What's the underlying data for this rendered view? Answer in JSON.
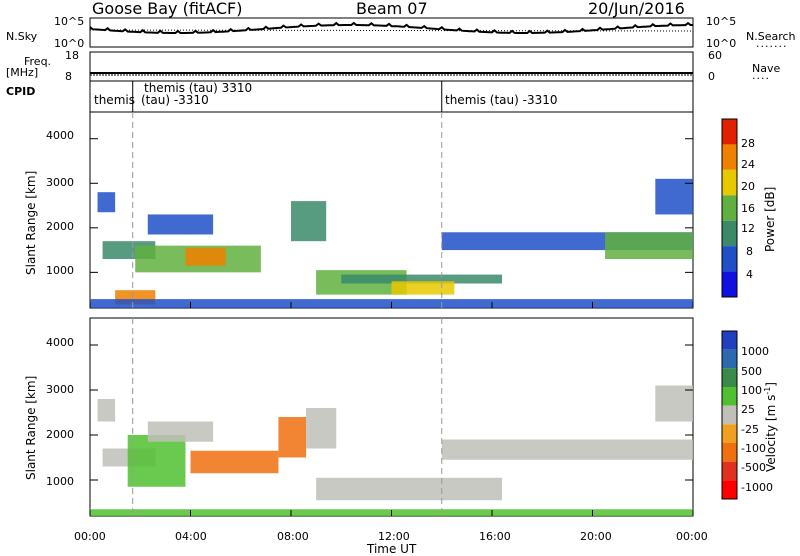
{
  "header": {
    "station": "Goose Bay (fitACF)",
    "beam": "Beam 07",
    "date": "20/Jun/2016"
  },
  "top_panels": {
    "nsky_label": "N.Sky",
    "nsky_ticks": [
      "10^5",
      "10^0"
    ],
    "nsearch_label": "N.Search",
    "nsearch_ticks": [
      "10^5",
      "10^0"
    ],
    "freq_label_line1": "Freq.",
    "freq_label_line2": "[MHz]",
    "freq_ticks": [
      "18",
      "8"
    ],
    "nave_label": "Nave",
    "nave_ticks": [
      "60",
      "0"
    ],
    "cpid_label": "CPID",
    "cpid_entries": [
      {
        "text": "themis",
        "time_hours": 0.0
      },
      {
        "text": "themis (tau) 3310",
        "time_hours": 1.7
      },
      {
        "text": "(tau) -3310",
        "time_hours": 1.7
      },
      {
        "text": "themis (tau) -3310",
        "time_hours": 14.0
      }
    ]
  },
  "chart_data": [
    {
      "type": "heatmap",
      "panel": "power",
      "ylabel": "Slant Range [km]",
      "xlabel": "",
      "yticks": [
        "1000",
        "2000",
        "3000",
        "4000"
      ],
      "ylim": [
        200,
        4600
      ],
      "xlim_hours": [
        0,
        24
      ],
      "colorbar_label": "Power [dB]",
      "colorbar_ticks": [
        "4",
        "8",
        "12",
        "16",
        "20",
        "24",
        "28"
      ],
      "colorbar_range": [
        0,
        30
      ],
      "colors": [
        "#1010e0",
        "#2050c8",
        "#3a8a6a",
        "#60b040",
        "#e8c800",
        "#f08000",
        "#e02000"
      ],
      "echo_regions": [
        {
          "t0": 0.3,
          "t1": 1.0,
          "r0": 2350,
          "r1": 2800,
          "level": 1
        },
        {
          "t0": 0.5,
          "t1": 2.6,
          "r0": 1300,
          "r1": 1700,
          "level": 2
        },
        {
          "t0": 1.8,
          "t1": 6.8,
          "r0": 1000,
          "r1": 1600,
          "level": 3
        },
        {
          "t0": 3.8,
          "t1": 5.4,
          "r0": 1150,
          "r1": 1550,
          "level": 5
        },
        {
          "t0": 1.0,
          "t1": 2.6,
          "r0": 280,
          "r1": 600,
          "level": 5
        },
        {
          "t0": 2.3,
          "t1": 4.9,
          "r0": 1850,
          "r1": 2300,
          "level": 1
        },
        {
          "t0": 8.0,
          "t1": 9.4,
          "r0": 1700,
          "r1": 2600,
          "level": 2
        },
        {
          "t0": 9.0,
          "t1": 12.6,
          "r0": 500,
          "r1": 1050,
          "level": 3
        },
        {
          "t0": 10.0,
          "t1": 16.4,
          "r0": 750,
          "r1": 950,
          "level": 2
        },
        {
          "t0": 12.0,
          "t1": 14.5,
          "r0": 500,
          "r1": 800,
          "level": 4
        },
        {
          "t0": 14.0,
          "t1": 24.0,
          "r0": 1500,
          "r1": 1900,
          "level": 1
        },
        {
          "t0": 20.5,
          "t1": 24.0,
          "r0": 1300,
          "r1": 1900,
          "level": 3
        },
        {
          "t0": 22.5,
          "t1": 24.0,
          "r0": 2300,
          "r1": 3100,
          "level": 1
        },
        {
          "t0": 0.0,
          "t1": 24.0,
          "r0": 200,
          "r1": 400,
          "level": 1
        }
      ]
    },
    {
      "type": "heatmap",
      "panel": "velocity",
      "ylabel": "Slant Range [km]",
      "xlabel": "Time UT",
      "xticks": [
        "00:00",
        "04:00",
        "08:00",
        "12:00",
        "16:00",
        "20:00",
        "00:00"
      ],
      "yticks": [
        "1000",
        "2000",
        "3000",
        "4000"
      ],
      "ylim": [
        200,
        4600
      ],
      "xlim_hours": [
        0,
        24
      ],
      "colorbar_label": "Velocity [m s^-1]",
      "colorbar_ticks": [
        "1000",
        "500",
        "100",
        "25",
        "-25",
        "-100",
        "-500",
        "-1000"
      ],
      "colors": [
        "#2040c0",
        "#2c6ab0",
        "#3a8a4a",
        "#50c030",
        "#c0c0b8",
        "#f0a020",
        "#f07010",
        "#e03020",
        "#ff0000"
      ],
      "echo_regions": [
        {
          "t0": 0.3,
          "t1": 1.0,
          "r0": 2300,
          "r1": 2800,
          "level": 4
        },
        {
          "t0": 0.5,
          "t1": 2.6,
          "r0": 1300,
          "r1": 1700,
          "level": 4
        },
        {
          "t0": 1.5,
          "t1": 3.8,
          "r0": 850,
          "r1": 2000,
          "level": 3
        },
        {
          "t0": 4.0,
          "t1": 7.5,
          "r0": 1150,
          "r1": 1650,
          "level": 6
        },
        {
          "t0": 7.5,
          "t1": 8.6,
          "r0": 1500,
          "r1": 2400,
          "level": 6
        },
        {
          "t0": 2.3,
          "t1": 4.9,
          "r0": 1850,
          "r1": 2300,
          "level": 4
        },
        {
          "t0": 8.6,
          "t1": 9.8,
          "r0": 1700,
          "r1": 2600,
          "level": 4
        },
        {
          "t0": 9.0,
          "t1": 16.4,
          "r0": 550,
          "r1": 1050,
          "level": 4
        },
        {
          "t0": 14.0,
          "t1": 24.0,
          "r0": 1450,
          "r1": 1900,
          "level": 4
        },
        {
          "t0": 22.5,
          "t1": 24.0,
          "r0": 2300,
          "r1": 3100,
          "level": 4
        },
        {
          "t0": 0.0,
          "t1": 24.0,
          "r0": 200,
          "r1": 350,
          "level": 3
        }
      ]
    }
  ]
}
